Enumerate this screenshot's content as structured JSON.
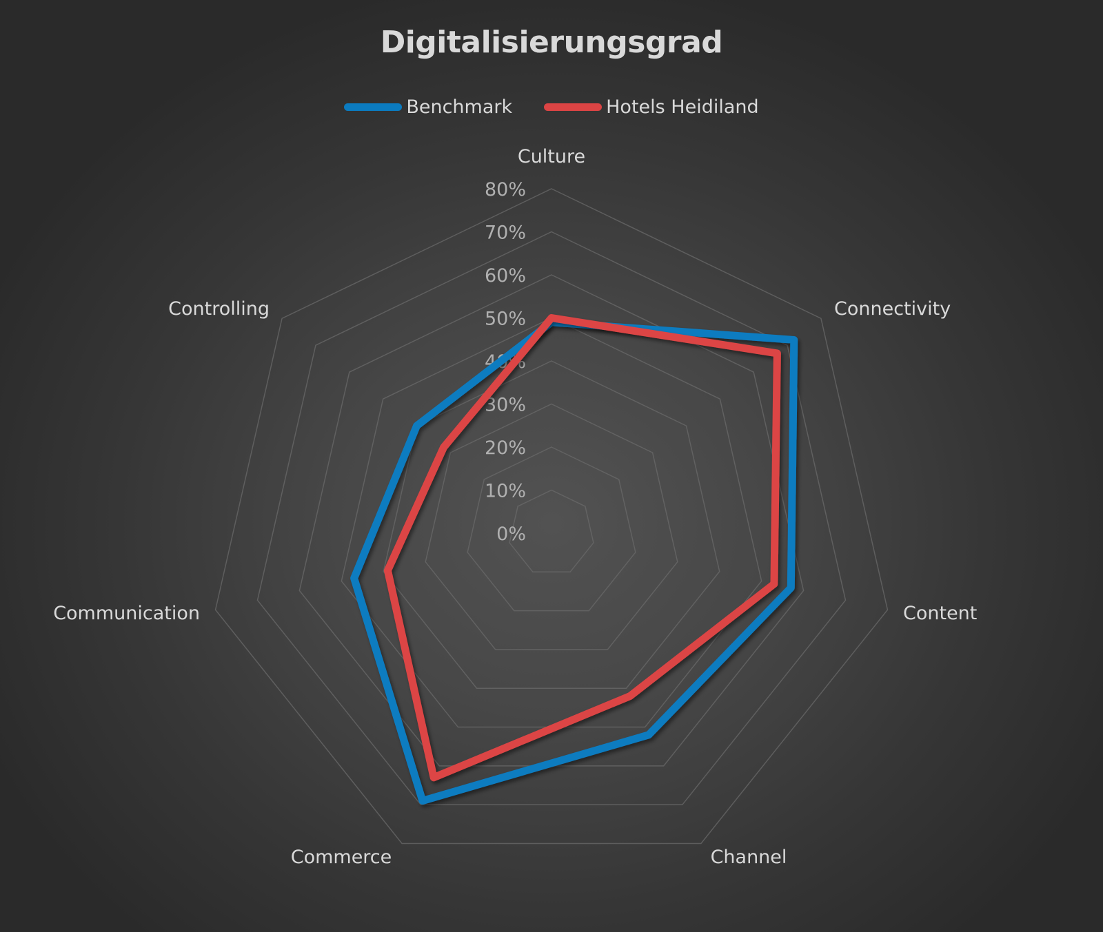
{
  "title": "Digitalisierungsgrad",
  "legend": [
    {
      "label": "Benchmark",
      "color": "#0b7bc0"
    },
    {
      "label": "Hotels Heidiland",
      "color": "#dc4444"
    }
  ],
  "colors": {
    "gridline": "#6a6a6a",
    "text": "#d9d9d9",
    "tick_text": "#b0b0b0"
  },
  "chart_data": {
    "type": "radar",
    "title": "Digitalisierungsgrad",
    "categories": [
      "Culture",
      "Connectivity",
      "Content",
      "Channel",
      "Commerce",
      "Communication",
      "Controlling"
    ],
    "series": [
      {
        "name": "Benchmark",
        "values": [
          0.49,
          0.72,
          0.57,
          0.52,
          0.69,
          0.47,
          0.4
        ]
      },
      {
        "name": "Hotels Heidiland",
        "values": [
          0.5,
          0.67,
          0.53,
          0.42,
          0.63,
          0.39,
          0.32
        ]
      }
    ],
    "radial_ticks": [
      "0%",
      "10%",
      "20%",
      "30%",
      "40%",
      "50%",
      "60%",
      "70%",
      "80%"
    ],
    "rlim": [
      0,
      0.8
    ],
    "legend_position": "top",
    "grid": true
  }
}
